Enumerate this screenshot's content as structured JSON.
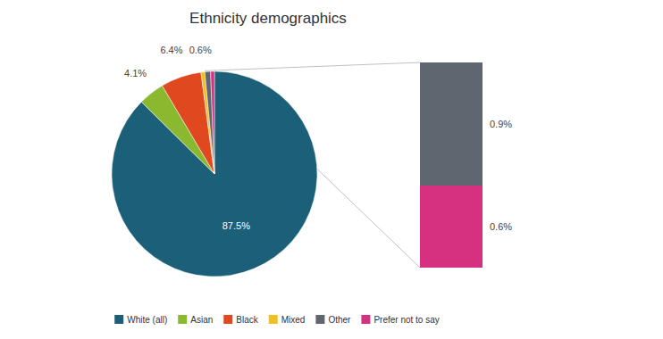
{
  "chart_data": {
    "type": "pie",
    "title": "Ethnicity demographics",
    "categories": [
      "White (all)",
      "Asian",
      "Black",
      "Mixed",
      "Other",
      "Prefer not to say"
    ],
    "values": [
      87.5,
      4.1,
      6.4,
      0.6,
      0.9,
      0.6
    ],
    "colors": [
      "#1b6078",
      "#8ab82e",
      "#e04820",
      "#f0c020",
      "#5f6670",
      "#d63080"
    ],
    "data_labels": true,
    "value_labels": [
      "87.5%",
      "4.1%",
      "6.4%",
      "0.6%",
      "0.9%",
      "0.6%"
    ],
    "legend": "bottom"
  }
}
